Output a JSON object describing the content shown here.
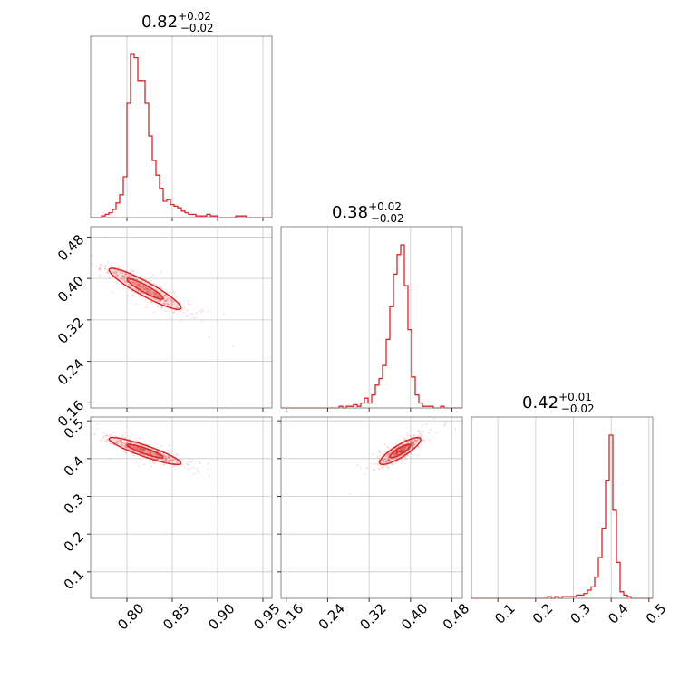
{
  "chart_data": {
    "type": "corner",
    "color": "#d62728",
    "parameters": [
      {
        "median": "0.82",
        "plus": "+0.02",
        "minus": "−0.02",
        "range": [
          0.76,
          0.96
        ],
        "ticks": [
          "0.80",
          "0.85",
          "0.90",
          "0.95"
        ]
      },
      {
        "median": "0.38",
        "plus": "+0.02",
        "minus": "−0.02",
        "range": [
          0.15,
          0.5
        ],
        "ticks": [
          "0.16",
          "0.24",
          "0.32",
          "0.40",
          "0.48"
        ]
      },
      {
        "median": "0.42",
        "plus": "+0.01",
        "minus": "−0.02",
        "range": [
          0.03,
          0.51
        ],
        "ticks": [
          "0.1",
          "0.2",
          "0.3",
          "0.4",
          "0.5"
        ]
      }
    ],
    "histograms": [
      {
        "parameter": 0,
        "x_start": 0.76,
        "bin_width": 0.004,
        "counts": [
          0,
          0,
          0,
          1,
          2,
          3,
          5,
          9,
          14,
          25,
          70,
          100,
          98,
          84,
          84,
          70,
          50,
          35,
          26,
          18,
          10,
          11,
          8,
          7,
          6,
          4,
          3,
          2,
          2,
          1,
          1,
          1,
          2,
          1,
          1,
          0,
          0,
          0,
          0,
          0,
          1,
          1,
          1,
          0,
          0,
          0,
          0,
          0,
          0,
          0
        ]
      },
      {
        "parameter": 1,
        "x_start": 0.15,
        "bin_width": 0.007,
        "counts": [
          0,
          0,
          0,
          0,
          0,
          0,
          0,
          0,
          0,
          0,
          0,
          0,
          0,
          0,
          0,
          0,
          1,
          0,
          1,
          1,
          2,
          1,
          3,
          6,
          3,
          8,
          14,
          18,
          26,
          42,
          62,
          82,
          94,
          100,
          75,
          48,
          19,
          8,
          3,
          1,
          1,
          1,
          0,
          0,
          1,
          0,
          0,
          0,
          0,
          0
        ]
      },
      {
        "parameter": 2,
        "x_start": 0.03,
        "bin_width": 0.0096,
        "counts": [
          0,
          0,
          0,
          0,
          0,
          0,
          0,
          0,
          0,
          0,
          0,
          0,
          0,
          0,
          0,
          0,
          0,
          0,
          0,
          0,
          0,
          1,
          0,
          1,
          0,
          1,
          1,
          1,
          1,
          2,
          2,
          3,
          5,
          7,
          13,
          25,
          43,
          72,
          100,
          54,
          22,
          4,
          2,
          1,
          0,
          0,
          0,
          0,
          0,
          0
        ]
      }
    ],
    "scatter_2d": [
      {
        "x_param": 0,
        "y_param": 1,
        "center": [
          0.82,
          0.38
        ],
        "sigma": [
          0.02,
          0.02
        ],
        "correlation": -0.92,
        "contour_levels": [
          0.39,
          0.86
        ]
      },
      {
        "x_param": 0,
        "y_param": 2,
        "center": [
          0.82,
          0.42
        ],
        "sigma": [
          0.02,
          0.018
        ],
        "correlation": -0.9,
        "contour_levels": [
          0.39,
          0.86
        ]
      },
      {
        "x_param": 1,
        "y_param": 2,
        "center": [
          0.38,
          0.42
        ],
        "sigma": [
          0.02,
          0.018
        ],
        "correlation": 0.85,
        "contour_levels": [
          0.39,
          0.86
        ]
      }
    ],
    "grid": true
  }
}
